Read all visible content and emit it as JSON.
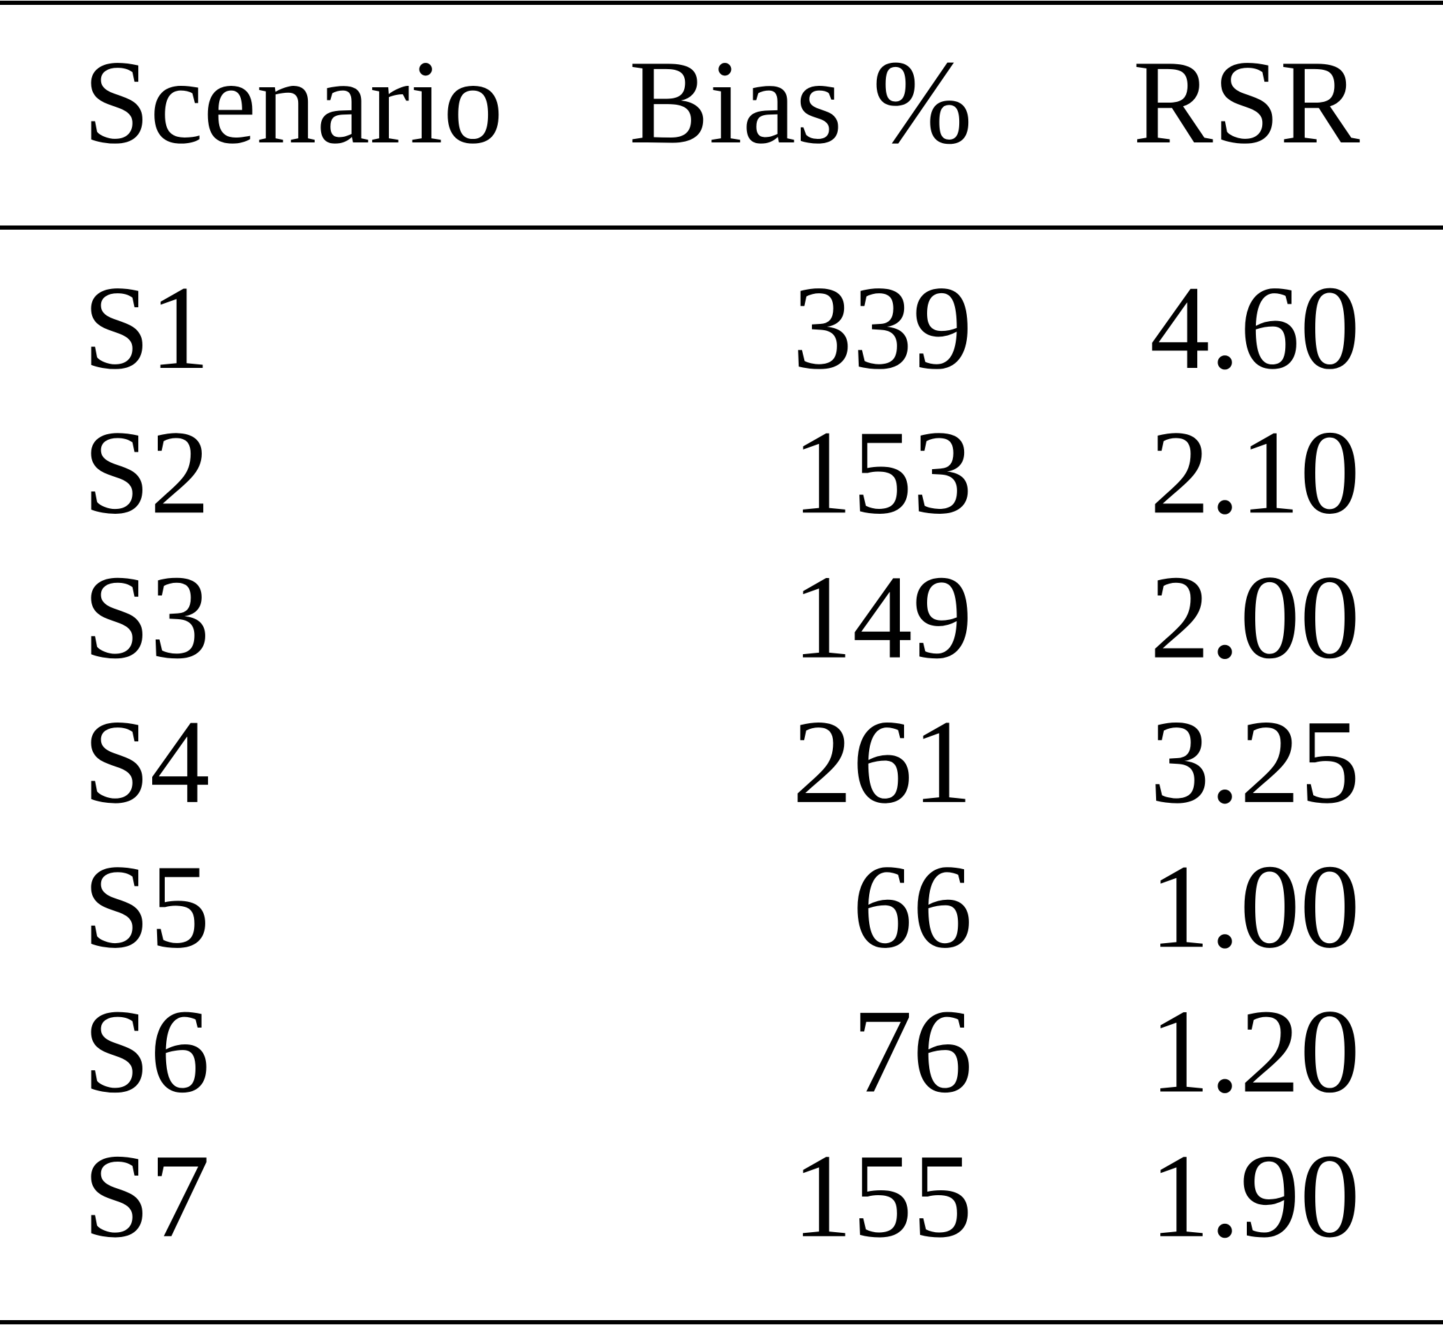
{
  "table": {
    "header": [
      "Scenario",
      "Bias %",
      "RSR"
    ],
    "rows": [
      [
        "S1",
        "339",
        "4.60"
      ],
      [
        "S2",
        "153",
        "2.10"
      ],
      [
        "S3",
        "149",
        "2.00"
      ],
      [
        "S4",
        "261",
        "3.25"
      ],
      [
        "S5",
        "66",
        "1.00"
      ],
      [
        "S6",
        "76",
        "1.20"
      ],
      [
        "S7",
        "155",
        "1.90"
      ]
    ]
  }
}
